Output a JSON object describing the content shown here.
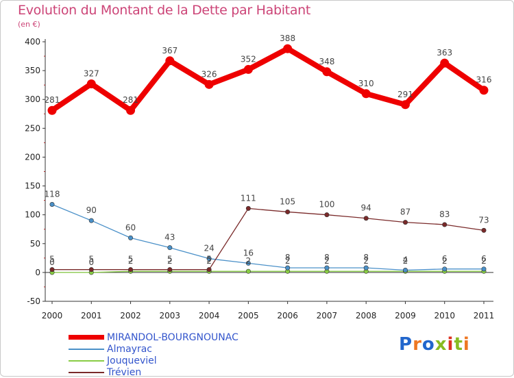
{
  "chart_data": {
    "type": "line",
    "title": "Evolution du Montant de la Dette par Habitant",
    "unit_label": "(en €)",
    "x": [
      "2000",
      "2001",
      "2002",
      "2003",
      "2004",
      "2005",
      "2006",
      "2007",
      "2008",
      "2009",
      "2010",
      "2011"
    ],
    "ylim": [
      -50,
      400
    ],
    "yticks": [
      -50,
      0,
      50,
      100,
      150,
      200,
      250,
      300,
      350,
      400
    ],
    "grid": false,
    "legend_position": "bottom-left",
    "series": [
      {
        "name": "MIRANDOL-BOURGNOUNAC",
        "color": "#ee0000",
        "values": [
          281,
          327,
          281,
          367,
          326,
          352,
          388,
          348,
          310,
          291,
          363,
          316
        ]
      },
      {
        "name": "Almayrac",
        "color": "#4a90c8",
        "values": [
          118,
          90,
          60,
          43,
          24,
          16,
          8,
          8,
          8,
          4,
          6,
          6
        ]
      },
      {
        "name": "Jouqueviel",
        "color": "#88cc44",
        "values": [
          0,
          0,
          2,
          2,
          2,
          2,
          2,
          2,
          2,
          2,
          2,
          2
        ]
      },
      {
        "name": "Trévien",
        "color": "#7a2a2a",
        "values": [
          5,
          5,
          5,
          5,
          5,
          111,
          105,
          100,
          94,
          87,
          83,
          73
        ]
      }
    ]
  },
  "legend_label_colors": {
    "MIRANDOL-BOURGNOUNAC": "#3355cc",
    "Almayrac": "#3355cc",
    "Jouqueviel": "#3355cc",
    "Trévien": "#3355cc"
  },
  "logo": {
    "text": "Proxiti",
    "letter_colors": [
      "#2266cc",
      "#ee7722",
      "#2266cc",
      "#88bb22",
      "#dd3322",
      "#88bb22",
      "#ee7722"
    ]
  }
}
